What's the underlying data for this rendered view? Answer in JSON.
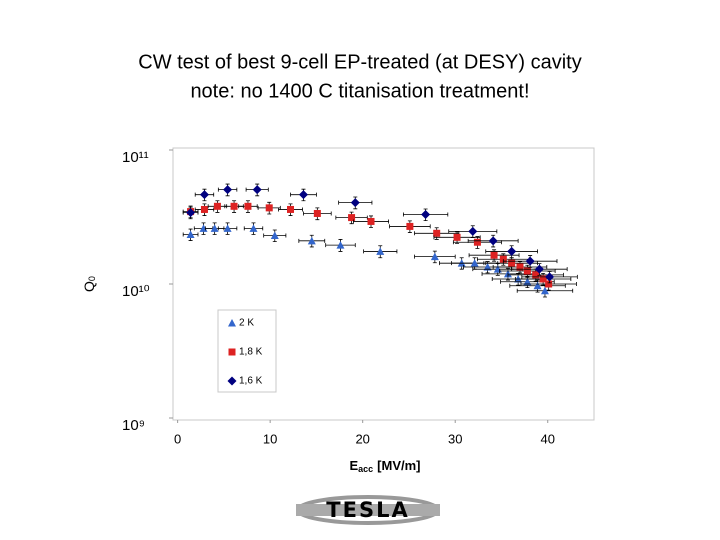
{
  "chart_data": {
    "type": "scatter",
    "title": "CW test of best 9-cell EP-treated (at DESY) cavity",
    "subtitle": "note: no 1400 C titanisation treatment!",
    "x_label": {
      "symbol": "E",
      "subscript": "acc",
      "unit": "[MV/m]"
    },
    "y_label": {
      "symbol": "Q",
      "subscript": "0"
    },
    "xlim": [
      -0.5,
      45
    ],
    "xticks": [
      0,
      10,
      20,
      30,
      40
    ],
    "ylim": [
      1000000000,
      100000000000
    ],
    "log_y": true,
    "yticks": [
      {
        "value": 1000000000,
        "label": "10⁹"
      },
      {
        "value": 10000000000,
        "label": "10¹⁰"
      },
      {
        "value": 100000000000,
        "label": "10¹¹"
      }
    ],
    "grid": false,
    "legend": "lower left",
    "series": [
      {
        "name": "2 K",
        "color": "#3366cc",
        "marker": "triangle",
        "x": [
          1.4,
          2.8,
          4.0,
          5.4,
          8.2,
          10.5,
          14.5,
          17.6,
          21.9,
          27.8,
          30.7,
          32.1,
          33.5,
          34.6,
          35.7,
          36.8,
          37.8,
          38.9,
          39.7
        ],
        "values": [
          23400000000,
          26000000000,
          26000000000,
          26000000000,
          26000000000,
          23000000000,
          21000000000,
          19500000000,
          17500000000,
          16000000000,
          14300000000,
          14300000000,
          13400000000,
          12900000000,
          11900000000,
          10900000000,
          10400000000,
          9700000000,
          8900000000
        ],
        "x_errors": [
          0.8,
          1,
          1,
          1,
          1,
          1.2,
          1.4,
          1.6,
          1.8,
          2.2,
          2.4,
          2.5,
          2.6,
          2.7,
          2.8,
          2.8,
          2.9,
          3,
          3
        ],
        "y_errors": [
          2300000000,
          2600000000,
          2600000000,
          2600000000,
          2600000000,
          2300000000,
          2100000000,
          2000000000,
          1800000000,
          1600000000,
          1400000000,
          1400000000,
          1300000000,
          1300000000,
          1200000000,
          1100000000,
          1000000000,
          1000000000,
          900000000
        ]
      },
      {
        "name": "1,8 K",
        "color": "#dd2222",
        "marker": "square",
        "x": [
          1.4,
          2.9,
          4.3,
          6.1,
          7.6,
          9.9,
          12.2,
          15.1,
          18.8,
          20.9,
          25.1,
          28.0,
          30.2,
          32.4,
          34.2,
          35.2,
          36.1,
          37.0,
          37.8,
          38.7,
          39.5,
          40.1
        ],
        "values": [
          34700000000,
          36000000000,
          38000000000,
          38000000000,
          38000000000,
          37000000000,
          36000000000,
          33600000000,
          31300000000,
          29300000000,
          26900000000,
          23900000000,
          22300000000,
          20500000000,
          16400000000,
          15300000000,
          14300000000,
          13400000000,
          12500000000,
          11700000000,
          10900000000,
          10000000000
        ],
        "x_errors": [
          0.8,
          1,
          1,
          1,
          1,
          1.2,
          1.3,
          1.5,
          1.7,
          1.9,
          2.2,
          2.4,
          2.5,
          2.6,
          2.7,
          2.8,
          2.8,
          2.9,
          3,
          3,
          3,
          3
        ],
        "y_errors": [
          3500000000,
          3600000000,
          3800000000,
          3800000000,
          3800000000,
          3700000000,
          3600000000,
          3400000000,
          3100000000,
          2900000000,
          2700000000,
          2400000000,
          2200000000,
          2100000000,
          1600000000,
          1500000000,
          1400000000,
          1300000000,
          1300000000,
          1200000000,
          1100000000,
          1000000000
        ]
      },
      {
        "name": "1,6 K",
        "color": "#000080",
        "marker": "diamond",
        "x": [
          1.4,
          2.9,
          5.4,
          8.6,
          13.6,
          19.2,
          26.8,
          31.9,
          34.1,
          36.1,
          38.1,
          39.1,
          40.2
        ],
        "values": [
          34100000000,
          46400000000,
          50600000000,
          50600000000,
          46400000000,
          40500000000,
          33000000000,
          24700000000,
          21000000000,
          17500000000,
          14800000000,
          12900000000,
          11300000000
        ],
        "x_errors": [
          0.8,
          1,
          1,
          1.2,
          1.4,
          1.8,
          2.4,
          2.6,
          2.7,
          2.8,
          2.9,
          3,
          3
        ],
        "y_errors": [
          3400000000,
          4600000000,
          5100000000,
          5100000000,
          4600000000,
          4100000000,
          3300000000,
          2500000000,
          2100000000,
          1800000000,
          1500000000,
          1300000000,
          1100000000
        ]
      }
    ]
  },
  "footer_logo": "TESLA"
}
